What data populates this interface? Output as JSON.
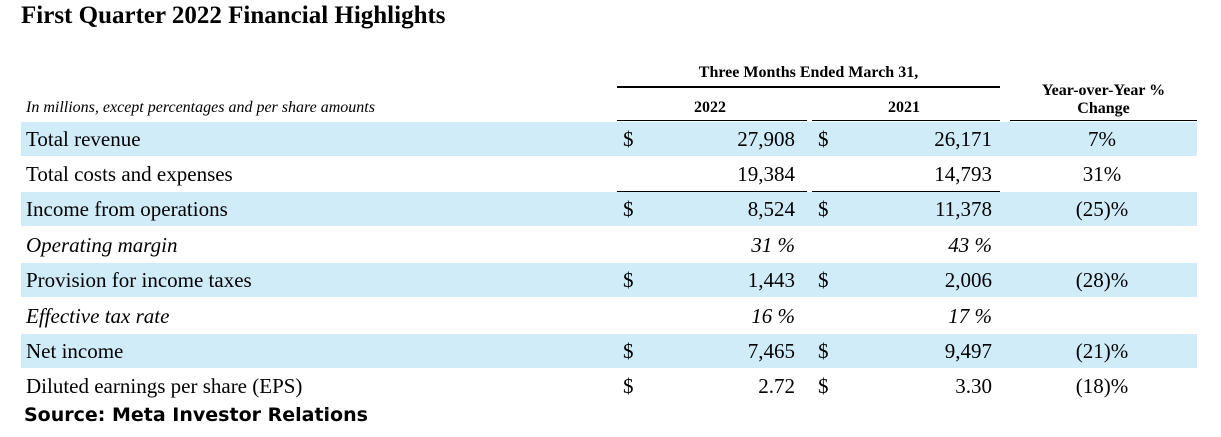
{
  "title": "First Quarter 2022 Financial Highlights",
  "subtitle": "In millions, except percentages and per share amounts",
  "period_header": "Three Months Ended March 31,",
  "col_2022": "2022",
  "col_2021": "2021",
  "yoy_header": [
    "Year-over-Year %",
    "Change"
  ],
  "rows": [
    {
      "label": "Total revenue",
      "d1": "$",
      "v1": "27,908",
      "d2": "$",
      "v2": "26,171",
      "chg": "7%"
    },
    {
      "label": "Total costs and expenses",
      "d1": "",
      "v1": "19,384",
      "d2": "",
      "v2": "14,793",
      "chg": "31%"
    },
    {
      "label": "Income from operations",
      "d1": "$",
      "v1": "8,524",
      "d2": "$",
      "v2": "11,378",
      "chg": "(25)%"
    },
    {
      "label": "Operating margin",
      "d1": "",
      "v1": "31 %",
      "d2": "",
      "v2": "43 %",
      "chg": ""
    },
    {
      "label": "Provision for income taxes",
      "d1": "$",
      "v1": "1,443",
      "d2": "$",
      "v2": "2,006",
      "chg": "(28)%"
    },
    {
      "label": "Effective tax rate",
      "d1": "",
      "v1": "16 %",
      "d2": "",
      "v2": "17 %",
      "chg": ""
    },
    {
      "label": "Net income",
      "d1": "$",
      "v1": "7,465",
      "d2": "$",
      "v2": "9,497",
      "chg": "(21)%"
    },
    {
      "label": "Diluted earnings per share (EPS)",
      "d1": "$",
      "v1": "2.72",
      "d2": "$",
      "v2": "3.30",
      "chg": "(18)%"
    }
  ],
  "source": "Source: Meta Investor Relations",
  "colors": {
    "row_shade": "#d0ecf9",
    "text": "#000000"
  }
}
